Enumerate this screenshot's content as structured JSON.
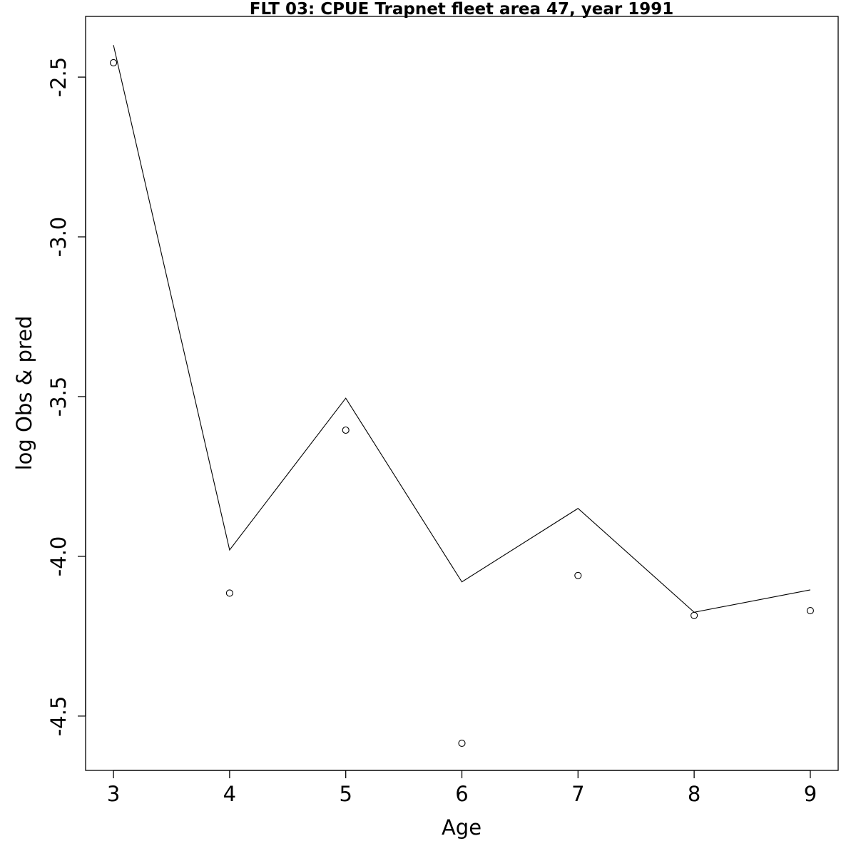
{
  "chart_data": {
    "type": "line",
    "title": "FLT 03: CPUE Trapnet fleet area 47, year 1991",
    "xlabel": "Age",
    "ylabel": "log Obs & pred",
    "x": [
      3,
      4,
      5,
      6,
      7,
      8,
      9
    ],
    "xticks": [
      "3",
      "4",
      "5",
      "6",
      "7",
      "8",
      "9"
    ],
    "yticks": [
      "-2.5",
      "-3.0",
      "-3.5",
      "-4.0",
      "-4.5"
    ],
    "ytick_values": [
      -2.5,
      -3.0,
      -3.5,
      -4.0,
      -4.5
    ],
    "xlim": [
      2.76,
      9.24
    ],
    "ylim": [
      -4.67,
      -2.31
    ],
    "grid": false,
    "series": [
      {
        "style": "line",
        "values": [
          -2.4,
          -3.98,
          -3.505,
          -4.08,
          -3.85,
          -4.175,
          -4.105
        ]
      },
      {
        "style": "points",
        "values": [
          -2.455,
          -4.115,
          -3.605,
          -4.585,
          -4.06,
          -4.185,
          -4.17
        ]
      }
    ],
    "colors": {
      "line": "#000000",
      "points": "#000000",
      "axes": "#000000",
      "background": "#ffffff"
    }
  }
}
